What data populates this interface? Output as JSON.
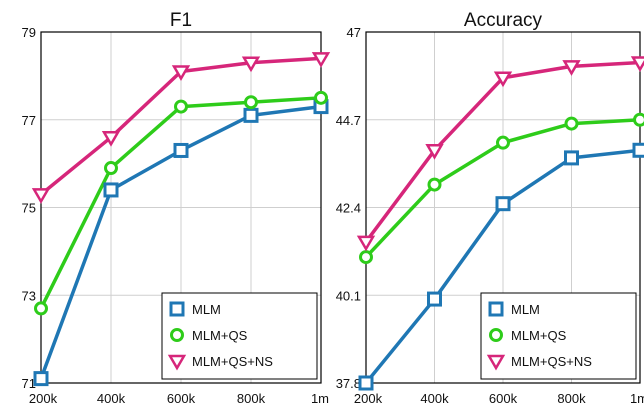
{
  "chart_data": [
    {
      "type": "line",
      "title": "F1",
      "xlabel": "",
      "ylabel": "",
      "categories": [
        "200k",
        "400k",
        "600k",
        "800k",
        "1m"
      ],
      "ylim": [
        71,
        79
      ],
      "yticks": [
        "71",
        "73",
        "75",
        "77",
        "79"
      ],
      "grid": true,
      "legend_position": "bottom-right",
      "series": [
        {
          "name": "MLM",
          "color": "#1f77b4",
          "marker": "square",
          "values": [
            71.1,
            75.4,
            76.3,
            77.1,
            77.3
          ]
        },
        {
          "name": "MLM+QS",
          "color": "#2ecc1a",
          "marker": "circle",
          "values": [
            72.7,
            75.9,
            77.3,
            77.4,
            77.5
          ]
        },
        {
          "name": "MLM+QS+NS",
          "color": "#d6267a",
          "marker": "triangle-down",
          "values": [
            75.3,
            76.6,
            78.1,
            78.3,
            78.4
          ]
        }
      ]
    },
    {
      "type": "line",
      "title": "Accuracy",
      "xlabel": "",
      "ylabel": "",
      "categories": [
        "200k",
        "400k",
        "600k",
        "800k",
        "1m"
      ],
      "ylim": [
        37.8,
        47
      ],
      "yticks": [
        "37.8",
        "40.1",
        "42.4",
        "44.7",
        "47"
      ],
      "grid": true,
      "legend_position": "bottom-right",
      "series": [
        {
          "name": "MLM",
          "color": "#1f77b4",
          "marker": "square",
          "values": [
            37.8,
            40.0,
            42.5,
            43.7,
            43.9
          ]
        },
        {
          "name": "MLM+QS",
          "color": "#2ecc1a",
          "marker": "circle",
          "values": [
            41.1,
            43.0,
            44.1,
            44.6,
            44.7
          ]
        },
        {
          "name": "MLM+QS+NS",
          "color": "#d6267a",
          "marker": "triangle-down",
          "values": [
            41.5,
            43.9,
            45.8,
            46.1,
            46.2
          ]
        }
      ]
    }
  ]
}
